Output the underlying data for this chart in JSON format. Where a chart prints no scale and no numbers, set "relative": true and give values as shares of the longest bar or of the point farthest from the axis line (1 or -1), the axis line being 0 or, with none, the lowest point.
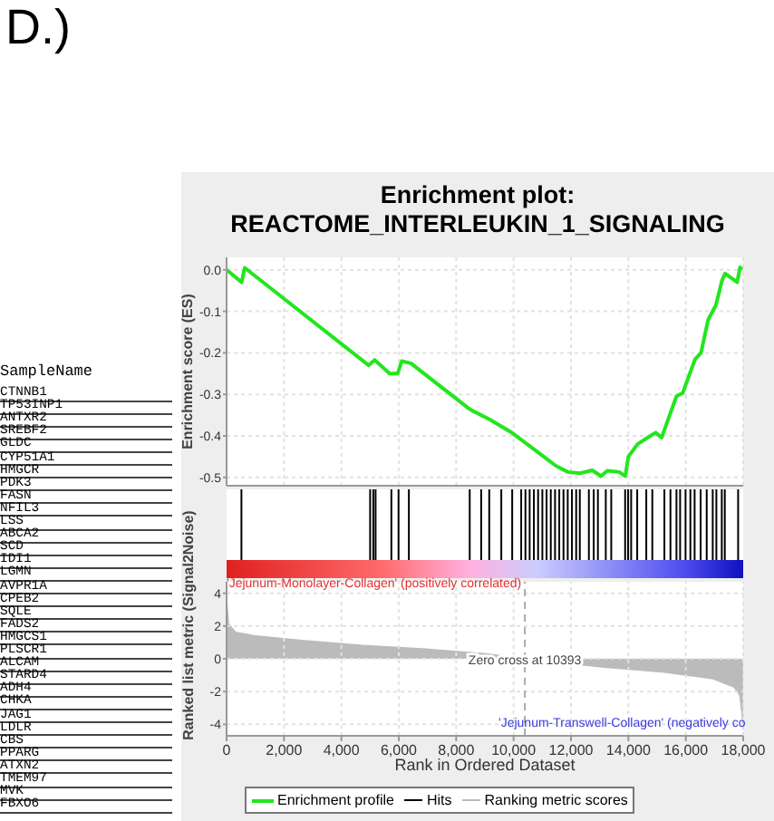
{
  "chart_data": [
    {
      "type": "other",
      "title": "D.)",
      "subtitle": "SampleName",
      "annotations": [
        "CTNNB1",
        "TP53INP1",
        "ANTXR2",
        "SREBF2",
        "GLDC",
        "CYP51A1",
        "HMGCR",
        "PDK3",
        "FASN",
        "NFIL3",
        "LSS",
        "ABCA2",
        "SCD",
        "IDI1",
        "LGMN",
        "AVPR1A",
        "CPEB2",
        "SQLE",
        "FADS2",
        "HMGCS1",
        "PLSCR1",
        "ALCAM",
        "STARD4",
        "ADH4",
        "CHKA",
        "JAG1",
        "LDLR",
        "CBS",
        "PPARG",
        "ATXN2",
        "TMEM97",
        "MVK",
        "FBXO6"
      ]
    },
    {
      "type": "line",
      "title": "Enrichment plot:",
      "subtitle": "REACTOME_INTERLEUKIN_1_SIGNALING",
      "ylabel": "Enrichment score (ES)",
      "xlim": [
        0,
        18000
      ],
      "xticks": [
        0,
        2000,
        4000,
        6000,
        8000,
        10000,
        12000,
        14000,
        16000,
        18000
      ],
      "ylim": [
        -0.52,
        0.03
      ],
      "yticks": [
        {
          "value": 0,
          "label": "0.0"
        },
        -0.1,
        -0.2,
        -0.3,
        -0.4,
        -0.5
      ],
      "tick_labels": "y",
      "grid": true,
      "legend": "bottom",
      "marker": "none",
      "series": [
        {
          "name": "Enrichment profile",
          "color": "#22e61e",
          "x": [
            0,
            526,
            630,
            4950,
            5160,
            5680,
            5960,
            6100,
            6420,
            8420,
            8530,
            9160,
            9890,
            11050,
            11470,
            11890,
            12320,
            12740,
            13050,
            13260,
            13680,
            13890,
            14000,
            14320,
            14630,
            14950,
            15160,
            15370,
            15680,
            15890,
            16320,
            16530,
            16780,
            17050,
            17260,
            17370,
            17790,
            17890,
            17950
          ],
          "values": [
            0,
            -0.03,
            0.005,
            -0.23,
            -0.217,
            -0.25,
            -0.25,
            -0.22,
            -0.225,
            -0.333,
            -0.338,
            -0.36,
            -0.39,
            -0.45,
            -0.472,
            -0.487,
            -0.49,
            -0.483,
            -0.497,
            -0.484,
            -0.487,
            -0.497,
            -0.45,
            -0.42,
            -0.406,
            -0.392,
            -0.404,
            -0.363,
            -0.304,
            -0.297,
            -0.216,
            -0.2,
            -0.12,
            -0.085,
            -0.026,
            -0.009,
            -0.03,
            0.006,
            0
          ]
        }
      ]
    },
    {
      "type": "bar",
      "relative": true,
      "xlim": [
        0,
        18000
      ],
      "tick_labels": false,
      "legend": "bottom",
      "series": [
        {
          "name": "Hits",
          "color": "#000000",
          "x": [
            526,
            5010,
            5120,
            5200,
            5750,
            6000,
            6360,
            8480,
            8880,
            9160,
            9580,
            9960,
            10274,
            10421,
            10568,
            10716,
            10863,
            11011,
            11158,
            11305,
            11453,
            11600,
            11747,
            11895,
            12042,
            12189,
            12316,
            12632,
            12800,
            12947,
            13221,
            13411,
            13895,
            14000,
            14105,
            14316,
            14632,
            14842,
            15263,
            15474,
            15684,
            15811,
            16000,
            16168,
            16316,
            16526,
            16737,
            16947,
            17074,
            17263,
            17368,
            17832
          ],
          "values": [
            1,
            1,
            1,
            1,
            1,
            1,
            1,
            1,
            1,
            1,
            1,
            1,
            1,
            1,
            1,
            1,
            1,
            1,
            1,
            1,
            1,
            1,
            1,
            1,
            1,
            1,
            1,
            1,
            1,
            1,
            1,
            1,
            1,
            1,
            1,
            1,
            1,
            1,
            1,
            1,
            1,
            1,
            1,
            1,
            1,
            1,
            1,
            1,
            1,
            1,
            1,
            1
          ]
        }
      ]
    },
    {
      "type": "area",
      "xlabel": "Rank in Ordered Dataset",
      "ylabel": "Ranked list metric (Signal2Noise)",
      "xlim": [
        0,
        18000
      ],
      "xticks": [
        0,
        {
          "value": 2000,
          "label": "2,000"
        },
        {
          "value": 4000,
          "label": "4,000"
        },
        {
          "value": 6000,
          "label": "6,000"
        },
        {
          "value": 8000,
          "label": "8,000"
        },
        {
          "value": 10000,
          "label": "10,000"
        },
        {
          "value": 12000,
          "label": "12,000"
        },
        {
          "value": 14000,
          "label": "14,000"
        },
        {
          "value": 16000,
          "label": "16,000"
        },
        {
          "value": 18000,
          "label": "18,000"
        }
      ],
      "ylim": [
        -4.7,
        4.7
      ],
      "yticks": [
        -4,
        -2,
        0,
        2,
        4
      ],
      "grid": true,
      "legend": "bottom",
      "ref_lines": [
        {
          "axis": "x",
          "value": 10393,
          "label": "Zero cross at 10393",
          "color": "#aaaaaa",
          "line_style": "dashed"
        }
      ],
      "annotations": [
        "'Jejunum-Monolayer-Collagen' (positively correlated)",
        "'Jejunum-Transwell-Collagen' (negatively co"
      ],
      "series": [
        {
          "name": "Ranking metric scores",
          "color": "#bbbbbb",
          "x": [
            0,
            63,
            316,
            947,
            2630,
            4740,
            6840,
            8950,
            10393,
            13160,
            15260,
            16950,
            17680,
            17890,
            17980,
            18000
          ],
          "values": [
            3.4,
            2.1,
            1.6,
            1.4,
            1.1,
            0.8,
            0.6,
            0.3,
            0,
            -0.5,
            -0.8,
            -1.2,
            -1.7,
            -2.2,
            -3.5,
            -4.3
          ]
        }
      ]
    }
  ]
}
